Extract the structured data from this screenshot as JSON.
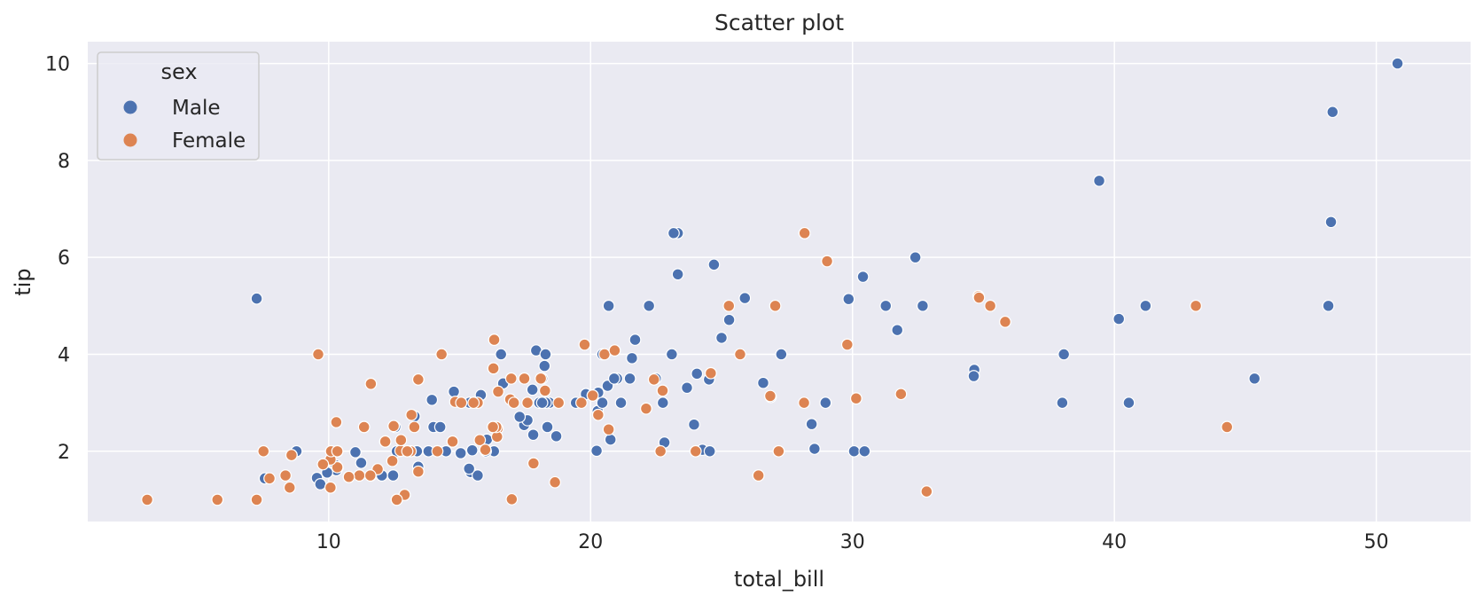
{
  "chart_data": {
    "type": "scatter",
    "title": "Scatter plot",
    "xlabel": "total_bill",
    "ylabel": "tip",
    "xlim": [
      0.8,
      53.6
    ],
    "ylim": [
      0.55,
      10.45
    ],
    "xticks": [
      10,
      20,
      30,
      40,
      50
    ],
    "yticks": [
      2,
      4,
      6,
      8,
      10
    ],
    "grid": true,
    "legend": {
      "title": "sex",
      "placement": "top-left"
    },
    "series": [
      {
        "name": "Male",
        "color": "#4c72b0",
        "points": [
          [
            10.34,
            1.66
          ],
          [
            21.01,
            3.5
          ],
          [
            23.68,
            3.31
          ],
          [
            25.29,
            4.71
          ],
          [
            8.77,
            2.0
          ],
          [
            26.88,
            3.12
          ],
          [
            15.04,
            1.96
          ],
          [
            14.78,
            3.23
          ],
          [
            10.27,
            1.71
          ],
          [
            15.42,
            1.57
          ],
          [
            18.43,
            3.0
          ],
          [
            21.58,
            3.92
          ],
          [
            16.29,
            3.71
          ],
          [
            16.97,
            3.5
          ],
          [
            20.65,
            3.35
          ],
          [
            17.92,
            4.08
          ],
          [
            39.42,
            7.58
          ],
          [
            19.82,
            3.18
          ],
          [
            17.81,
            2.34
          ],
          [
            13.37,
            2.0
          ],
          [
            12.69,
            2.0
          ],
          [
            21.7,
            4.3
          ],
          [
            9.55,
            1.45
          ],
          [
            18.35,
            2.5
          ],
          [
            17.78,
            3.27
          ],
          [
            24.06,
            3.6
          ],
          [
            16.31,
            2.0
          ],
          [
            18.69,
            2.31
          ],
          [
            31.27,
            5.0
          ],
          [
            16.04,
            2.24
          ],
          [
            17.46,
            2.54
          ],
          [
            13.94,
            3.06
          ],
          [
            9.68,
            1.32
          ],
          [
            30.4,
            5.6
          ],
          [
            18.29,
            3.0
          ],
          [
            22.23,
            5.0
          ],
          [
            32.4,
            6.0
          ],
          [
            28.55,
            2.05
          ],
          [
            18.04,
            3.0
          ],
          [
            12.54,
            2.5
          ],
          [
            9.94,
            1.56
          ],
          [
            25.0,
            4.34
          ],
          [
            12.74,
            2.01
          ],
          [
            38.01,
            3.0
          ],
          [
            11.35,
            2.5
          ],
          [
            28.97,
            3.0
          ],
          [
            14.15,
            2.0
          ],
          [
            38.07,
            4.0
          ],
          [
            12.48,
            2.52
          ],
          [
            22.76,
            3.0
          ],
          [
            20.29,
            3.21
          ],
          [
            12.6,
            1.0
          ],
          [
            32.83,
            1.17
          ],
          [
            35.83,
            4.67
          ],
          [
            29.03,
            5.92
          ],
          [
            27.18,
            2.0
          ],
          [
            22.67,
            2.0
          ],
          [
            17.82,
            1.75
          ],
          [
            18.78,
            3.0
          ],
          [
            7.25,
            5.15
          ],
          [
            7.56,
            1.44
          ],
          [
            10.29,
            1.61
          ],
          [
            34.81,
            5.2
          ],
          [
            9.94,
            1.56
          ],
          [
            48.27,
            6.73
          ],
          [
            20.27,
            2.83
          ],
          [
            12.03,
            1.5
          ],
          [
            17.59,
            2.64
          ],
          [
            22.42,
            3.48
          ],
          [
            34.65,
            3.68
          ],
          [
            23.33,
            5.65
          ],
          [
            45.35,
            3.5
          ],
          [
            23.95,
            2.55
          ],
          [
            25.89,
            5.16
          ],
          [
            31.71,
            4.5
          ],
          [
            26.59,
            3.41
          ],
          [
            32.68,
            5.0
          ],
          [
            40.17,
            4.73
          ],
          [
            28.44,
            2.56
          ],
          [
            15.48,
            2.02
          ],
          [
            16.58,
            4.0
          ],
          [
            20.45,
            3.0
          ],
          [
            48.33,
            9.0
          ],
          [
            20.08,
            3.15
          ],
          [
            11.61,
            3.39
          ],
          [
            10.77,
            1.47
          ],
          [
            15.53,
            3.0
          ],
          [
            10.07,
            1.25
          ],
          [
            12.6,
            1.0
          ],
          [
            32.83,
            1.17
          ],
          [
            22.82,
            2.18
          ],
          [
            18.24,
            3.76
          ],
          [
            14.31,
            4.0
          ],
          [
            24.71,
            5.85
          ],
          [
            21.16,
            3.0
          ],
          [
            28.97,
            3.0
          ],
          [
            22.49,
            3.5
          ],
          [
            5.75,
            1.0
          ],
          [
            16.32,
            4.3
          ],
          [
            22.75,
            3.25
          ],
          [
            40.55,
            3.0
          ],
          [
            20.69,
            5.0
          ],
          [
            20.76,
            2.24
          ],
          [
            30.06,
            2.0
          ],
          [
            48.17,
            5.0
          ],
          [
            50.81,
            10.0
          ],
          [
            15.81,
            3.16
          ],
          [
            7.51,
            2.0
          ],
          [
            34.63,
            3.55
          ],
          [
            12.16,
            2.2
          ],
          [
            13.42,
            3.48
          ],
          [
            8.58,
            1.92
          ],
          [
            15.98,
            2.03
          ],
          [
            13.42,
            1.58
          ],
          [
            16.27,
            2.5
          ],
          [
            10.09,
            2.0
          ],
          [
            20.45,
            4.0
          ],
          [
            13.28,
            2.72
          ],
          [
            24.01,
            2.0
          ],
          [
            15.69,
            3.0
          ],
          [
            11.61,
            1.5
          ],
          [
            10.77,
            1.47
          ],
          [
            15.53,
            3.0
          ],
          [
            10.07,
            1.25
          ],
          [
            12.6,
            2.0
          ],
          [
            32.83,
            1.17
          ],
          [
            13.03,
            2.0
          ],
          [
            18.28,
            4.0
          ],
          [
            24.59,
            3.61
          ],
          [
            11.24,
            1.76
          ],
          [
            17.29,
            2.71
          ],
          [
            19.44,
            3.0
          ],
          [
            16.66,
            3.4
          ],
          [
            10.07,
            1.83
          ],
          [
            15.38,
            3.0
          ],
          [
            20.23,
            2.01
          ],
          [
            23.1,
            4.0
          ],
          [
            15.69,
            1.5
          ],
          [
            18.15,
            3.5
          ],
          [
            30.46,
            2.0
          ],
          [
            23.33,
            6.5
          ],
          [
            24.27,
            2.03
          ],
          [
            27.28,
            4.0
          ],
          [
            29.85,
            5.14
          ],
          [
            9.6,
            4.0
          ],
          [
            14.0,
            2.5
          ],
          [
            41.19,
            5.0
          ],
          [
            17.47,
            3.5
          ],
          [
            16.0,
            2.0
          ],
          [
            11.02,
            1.98
          ],
          [
            21.5,
            3.5
          ],
          [
            14.26,
            2.5
          ],
          [
            24.52,
            3.48
          ],
          [
            20.92,
            4.08
          ],
          [
            13.81,
            2.0
          ],
          [
            15.36,
            1.64
          ],
          [
            20.9,
            3.5
          ],
          [
            18.15,
            3.0
          ],
          [
            12.46,
            1.5
          ],
          [
            30.14,
            3.09
          ],
          [
            24.55,
            2.0
          ],
          [
            13.42,
            1.68
          ],
          [
            12.9,
            1.1
          ],
          [
            14.73,
            2.2
          ],
          [
            20.29,
            2.75
          ],
          [
            22.12,
            2.88
          ],
          [
            13.0,
            2.0
          ],
          [
            14.48,
            2.0
          ],
          [
            23.17,
            6.5
          ]
        ]
      },
      {
        "name": "Female",
        "color": "#dd8452",
        "points": [
          [
            16.99,
            1.01
          ],
          [
            24.59,
            3.61
          ],
          [
            35.26,
            5.0
          ],
          [
            14.83,
            3.02
          ],
          [
            10.33,
            1.67
          ],
          [
            16.29,
            3.71
          ],
          [
            16.97,
            3.5
          ],
          [
            20.29,
            2.75
          ],
          [
            15.77,
            2.23
          ],
          [
            19.65,
            3.0
          ],
          [
            15.06,
            3.0
          ],
          [
            20.69,
            2.45
          ],
          [
            16.93,
            3.07
          ],
          [
            10.29,
            2.6
          ],
          [
            34.81,
            5.2
          ],
          [
            26.41,
            1.5
          ],
          [
            16.45,
            2.47
          ],
          [
            3.07,
            1.0
          ],
          [
            17.07,
            3.0
          ],
          [
            26.86,
            3.14
          ],
          [
            25.28,
            5.0
          ],
          [
            14.73,
            2.2
          ],
          [
            10.07,
            1.83
          ],
          [
            34.83,
            5.17
          ],
          [
            5.75,
            1.0
          ],
          [
            16.32,
            4.3
          ],
          [
            22.75,
            3.25
          ],
          [
            11.17,
            1.5
          ],
          [
            18.26,
            3.25
          ],
          [
            8.51,
            1.25
          ],
          [
            10.33,
            2.0
          ],
          [
            14.15,
            2.0
          ],
          [
            13.16,
            2.75
          ],
          [
            17.47,
            3.5
          ],
          [
            27.05,
            5.0
          ],
          [
            16.43,
            2.3
          ],
          [
            8.35,
            1.5
          ],
          [
            18.64,
            1.36
          ],
          [
            11.87,
            1.63
          ],
          [
            9.78,
            1.73
          ],
          [
            7.51,
            2.0
          ],
          [
            13.13,
            2.0
          ],
          [
            43.11,
            5.0
          ],
          [
            13.0,
            2.0
          ],
          [
            12.74,
            2.01
          ],
          [
            13.0,
            2.0
          ],
          [
            16.4,
            2.5
          ],
          [
            20.53,
            4.0
          ],
          [
            16.47,
            3.23
          ],
          [
            26.41,
            1.5
          ],
          [
            12.16,
            2.2
          ],
          [
            13.42,
            3.48
          ],
          [
            8.58,
            1.92
          ],
          [
            15.98,
            2.03
          ],
          [
            13.42,
            1.58
          ],
          [
            12.43,
            1.8
          ],
          [
            29.8,
            4.2
          ],
          [
            28.17,
            6.5
          ],
          [
            7.25,
            1.0
          ],
          [
            31.85,
            3.18
          ],
          [
            13.27,
            2.5
          ],
          [
            28.17,
            6.5
          ],
          [
            12.9,
            1.1
          ],
          [
            28.15,
            3.0
          ],
          [
            11.59,
            1.5
          ],
          [
            7.74,
            1.44
          ],
          [
            30.14,
            3.09
          ],
          [
            12.16,
            2.2
          ],
          [
            13.42,
            3.48
          ],
          [
            8.58,
            1.92
          ],
          [
            15.98,
            2.03
          ],
          [
            13.42,
            1.58
          ],
          [
            16.27,
            2.5
          ],
          [
            10.09,
            2.0
          ],
          [
            22.12,
            2.88
          ],
          [
            24.01,
            2.0
          ],
          [
            15.69,
            3.0
          ],
          [
            11.61,
            3.39
          ],
          [
            10.77,
            1.47
          ],
          [
            15.53,
            3.0
          ],
          [
            10.07,
            1.25
          ],
          [
            12.6,
            1.0
          ],
          [
            32.83,
            1.17
          ],
          [
            35.83,
            4.67
          ],
          [
            29.03,
            5.92
          ],
          [
            27.18,
            2.0
          ],
          [
            22.67,
            2.0
          ],
          [
            17.82,
            1.75
          ],
          [
            18.78,
            3.0
          ],
          [
            9.6,
            4.0
          ],
          [
            14.31,
            4.0
          ],
          [
            19.77,
            4.2
          ],
          [
            20.92,
            4.08
          ],
          [
            44.3,
            2.5
          ],
          [
            22.42,
            3.48
          ],
          [
            25.71,
            4.0
          ],
          [
            12.48,
            2.52
          ],
          [
            12.76,
            2.23
          ],
          [
            11.35,
            2.5
          ],
          [
            10.33,
            2.0
          ],
          [
            18.1,
            3.5
          ],
          [
            17.59,
            3.0
          ],
          [
            20.08,
            3.15
          ]
        ]
      }
    ]
  }
}
